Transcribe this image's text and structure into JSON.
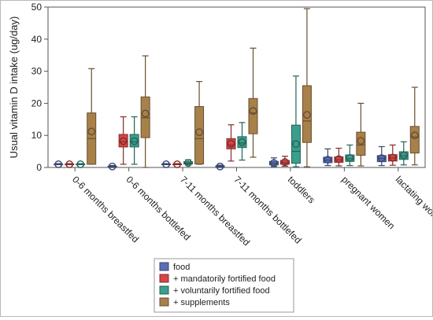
{
  "chart_data": {
    "type": "boxplot",
    "ylabel": "Usual vitamin D intake (ug/day)",
    "ylim": [
      0,
      50
    ],
    "yticks": [
      0,
      10,
      20,
      30,
      40,
      50
    ],
    "grid": false,
    "legend_position": "bottom",
    "categories": [
      "0-6 months breastfed",
      "0-6 months bottlefed",
      "7-11 months breastfed",
      "7-11 months bottlefed",
      "toddlers",
      "pregnant women",
      "lactating women"
    ],
    "series": [
      {
        "name": "food",
        "color": "#5a6fb5",
        "boxes": [
          {
            "min": 0.9,
            "q1": 0.9,
            "median": 1.0,
            "q3": 1.1,
            "max": 1.2,
            "mean": 1.0
          },
          {
            "min": 0.0,
            "q1": 0.1,
            "median": 0.2,
            "q3": 0.4,
            "max": 0.6,
            "mean": 0.3
          },
          {
            "min": 0.9,
            "q1": 0.9,
            "median": 1.0,
            "q3": 1.1,
            "max": 1.2,
            "mean": 1.0
          },
          {
            "min": 0.0,
            "q1": 0.1,
            "median": 0.3,
            "q3": 0.5,
            "max": 0.7,
            "mean": 0.3
          },
          {
            "min": 0.3,
            "q1": 0.8,
            "median": 1.3,
            "q3": 1.9,
            "max": 3.0,
            "mean": 1.4
          },
          {
            "min": 0.6,
            "q1": 1.5,
            "median": 2.3,
            "q3": 3.2,
            "max": 5.8,
            "mean": 2.4
          },
          {
            "min": 0.6,
            "q1": 1.8,
            "median": 2.8,
            "q3": 3.7,
            "max": 6.5,
            "mean": 2.9
          }
        ]
      },
      {
        "name": "+ mandatorily fortified food",
        "color": "#d64545",
        "boxes": [
          {
            "min": 0.9,
            "q1": 0.9,
            "median": 1.0,
            "q3": 1.1,
            "max": 1.2,
            "mean": 1.0
          },
          {
            "min": 1.0,
            "q1": 6.4,
            "median": 8.0,
            "q3": 10.3,
            "max": 15.8,
            "mean": 8.2
          },
          {
            "min": 0.9,
            "q1": 0.9,
            "median": 1.0,
            "q3": 1.1,
            "max": 1.2,
            "mean": 1.0
          },
          {
            "min": 2.0,
            "q1": 5.8,
            "median": 7.0,
            "q3": 9.0,
            "max": 13.3,
            "mean": 7.4
          },
          {
            "min": 0.4,
            "q1": 1.0,
            "median": 1.5,
            "q3": 2.2,
            "max": 3.5,
            "mean": 1.7
          },
          {
            "min": 0.5,
            "q1": 1.6,
            "median": 2.4,
            "q3": 3.3,
            "max": 6.0,
            "mean": 2.6
          },
          {
            "min": 0.7,
            "q1": 2.0,
            "median": 3.0,
            "q3": 4.0,
            "max": 7.0,
            "mean": 3.1
          }
        ]
      },
      {
        "name": "+ voluntarily fortified food",
        "color": "#3a9e8c",
        "boxes": [
          {
            "min": 0.9,
            "q1": 0.9,
            "median": 1.0,
            "q3": 1.1,
            "max": 1.2,
            "mean": 1.0
          },
          {
            "min": 1.0,
            "q1": 6.4,
            "median": 8.0,
            "q3": 10.3,
            "max": 15.8,
            "mean": 8.2
          },
          {
            "min": 0.8,
            "q1": 1.1,
            "median": 1.4,
            "q3": 1.8,
            "max": 2.4,
            "mean": 1.4
          },
          {
            "min": 2.3,
            "q1": 6.2,
            "median": 7.6,
            "q3": 9.6,
            "max": 14.0,
            "mean": 7.9
          },
          {
            "min": 0.2,
            "q1": 1.3,
            "median": 5.0,
            "q3": 13.2,
            "max": 28.5,
            "mean": 7.3
          },
          {
            "min": 0.6,
            "q1": 1.9,
            "median": 2.7,
            "q3": 3.9,
            "max": 7.0,
            "mean": 3.0
          },
          {
            "min": 0.8,
            "q1": 2.5,
            "median": 3.6,
            "q3": 4.9,
            "max": 8.0,
            "mean": 3.8
          }
        ]
      },
      {
        "name": "+ supplements",
        "color": "#a8804a",
        "boxes": [
          {
            "min": 1.0,
            "q1": 1.0,
            "median": 9.0,
            "q3": 17.0,
            "max": 30.8,
            "mean": 11.2
          },
          {
            "min": 0.0,
            "q1": 9.3,
            "median": 15.5,
            "q3": 22.0,
            "max": 34.8,
            "mean": 16.8
          },
          {
            "min": 1.0,
            "q1": 1.1,
            "median": 9.0,
            "q3": 19.0,
            "max": 26.8,
            "mean": 11.0
          },
          {
            "min": 3.2,
            "q1": 10.5,
            "median": 17.0,
            "q3": 21.5,
            "max": 37.2,
            "mean": 17.6
          },
          {
            "min": 0.2,
            "q1": 7.8,
            "median": 14.5,
            "q3": 25.5,
            "max": 49.5,
            "mean": 16.4
          },
          {
            "min": 0.5,
            "q1": 3.8,
            "median": 7.0,
            "q3": 11.0,
            "max": 20.0,
            "mean": 8.3
          },
          {
            "min": 0.8,
            "q1": 4.5,
            "median": 9.5,
            "q3": 12.8,
            "max": 25.0,
            "mean": 10.0
          }
        ]
      }
    ],
    "legend": [
      {
        "label": "food",
        "color": "#5a6fb5"
      },
      {
        "label": "+ mandatorily fortified food",
        "color": "#d64545"
      },
      {
        "label": "+ voluntarily fortified food",
        "color": "#3a9e8c"
      },
      {
        "label": "+ supplements",
        "color": "#a8804a"
      }
    ]
  }
}
